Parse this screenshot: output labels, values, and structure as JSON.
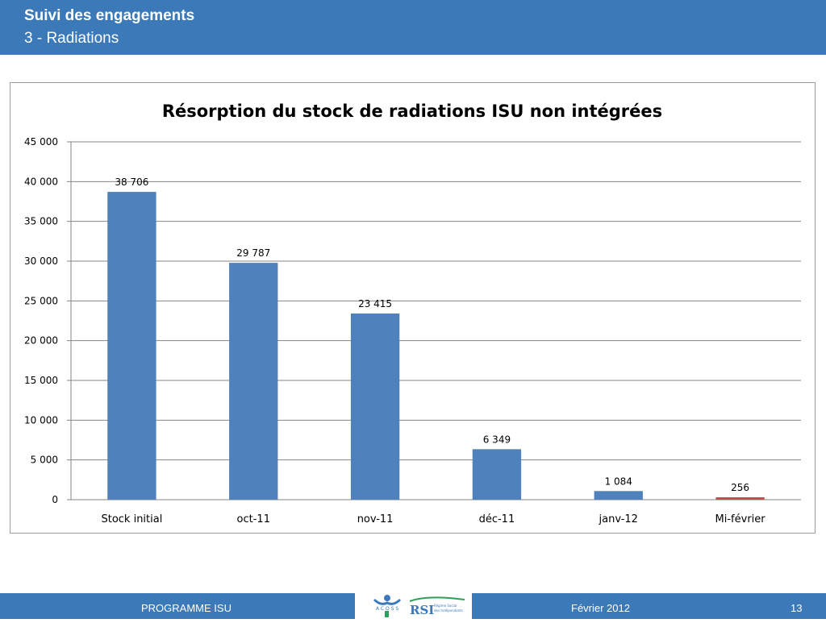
{
  "header": {
    "title": "Suivi des engagements",
    "subtitle": "3 - Radiations"
  },
  "chart_data": {
    "type": "bar",
    "title": "Résorption du stock de radiations ISU non intégrées",
    "xlabel": "",
    "ylabel": "",
    "categories": [
      "Stock initial",
      "oct-11",
      "nov-11",
      "déc-11",
      "janv-12",
      "Mi-février"
    ],
    "values": [
      38706,
      29787,
      23415,
      6349,
      1084,
      256
    ],
    "value_labels": [
      "38 706",
      "29 787",
      "23 415",
      "6 349",
      "1 084",
      "256"
    ],
    "ylim": [
      0,
      45000
    ],
    "yticks": [
      0,
      5000,
      10000,
      15000,
      20000,
      25000,
      30000,
      35000,
      40000,
      45000
    ],
    "ytick_labels": [
      "0",
      "5 000",
      "10 000",
      "15 000",
      "20 000",
      "25 000",
      "30 000",
      "35 000",
      "40 000",
      "45 000"
    ],
    "grid": true,
    "legend": "none",
    "bar_color": "#4f81bd",
    "highlight_color": "#c0504d",
    "highlight_index": 5
  },
  "footer": {
    "program": "PROGRAMME ISU",
    "date": "Février 2012",
    "page": "13",
    "logo_acoss": "A C O S S",
    "logo_rsi": "RSI",
    "logo_rsi_sub1": "Régime Social",
    "logo_rsi_sub2": "des Indépendants"
  },
  "colors": {
    "header_bg": "#3b79b8",
    "footer_bg": "#3b79b8"
  }
}
